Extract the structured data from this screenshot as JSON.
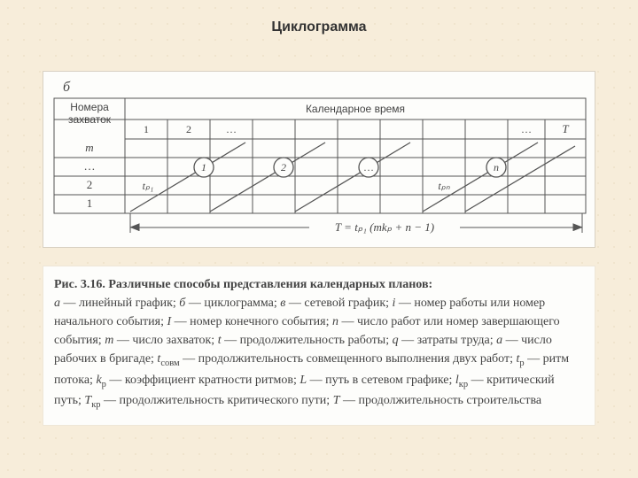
{
  "title": "Циклограмма",
  "figure": {
    "label_b": "б",
    "header_left": "Номера\nзахваток",
    "header_right": "Календарное время",
    "col_labels": [
      "1",
      "2",
      "…",
      "",
      "",
      "",
      "",
      "",
      "",
      "…",
      "T"
    ],
    "row_labels": [
      "m",
      "…",
      "2",
      "1"
    ],
    "tp1": "tₚ₁",
    "tpn": "tₚₙ",
    "node_labels": [
      "1",
      "2",
      "…",
      "n"
    ],
    "bottom_formula": "T = tₚ₁ (mkₚ + n − 1)",
    "colors": {
      "line": "#555",
      "fill": "#fdfdfb",
      "dimension": "#555"
    }
  },
  "caption": {
    "lead": "Рис. 3.16. Различные способы представления календарных планов:",
    "body_html": "<em>а</em> — линейный график; <em>б</em> — циклограмма; <em>в</em> — сетевой график; <em>i</em> — номер работы или номер начального события; <em>I</em> — номер конечного события; <em>n</em> — число работ или номер завершающего события; <em>m</em> — число захваток; <em>t</em> — продолжительность работы; <em>q</em> — затраты труда; <em>a</em> — число рабочих в бригаде; <em>t</em><sub>совм</sub> — продолжительность совмещенного выполнения двух работ; <em>t</em><sub>р</sub> — ритм потока; <em>k</em><sub>р</sub> — коэффициент кратности ритмов; <em>L</em> — путь в сетевом графике; <em>l</em><sub>кр</sub> — критический путь; <em>T</em><sub>кр</sub> — продолжительность критического пути; <em>T</em> — продолжительность строительства"
  }
}
